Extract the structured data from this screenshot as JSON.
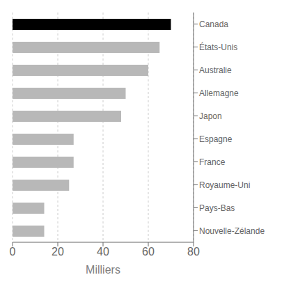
{
  "chart_data": {
    "type": "bar",
    "orientation": "horizontal",
    "categories": [
      "Canada",
      "États-Unis",
      "Australie",
      "Allemagne",
      "Japon",
      "Espagne",
      "France",
      "Royaume-Uni",
      "Pays-Bas",
      "Nouvelle-Zélande"
    ],
    "values": [
      70,
      65,
      60,
      50,
      48,
      27,
      27,
      25,
      14,
      14
    ],
    "colors": [
      "#000000",
      "#b8b8b8",
      "#b8b8b8",
      "#b8b8b8",
      "#b8b8b8",
      "#b8b8b8",
      "#b8b8b8",
      "#b8b8b8",
      "#b8b8b8",
      "#b8b8b8"
    ],
    "xlabel": "Milliers",
    "xlim": [
      0,
      80
    ],
    "xticks": [
      0,
      20,
      40,
      60,
      80
    ],
    "grid": true
  }
}
